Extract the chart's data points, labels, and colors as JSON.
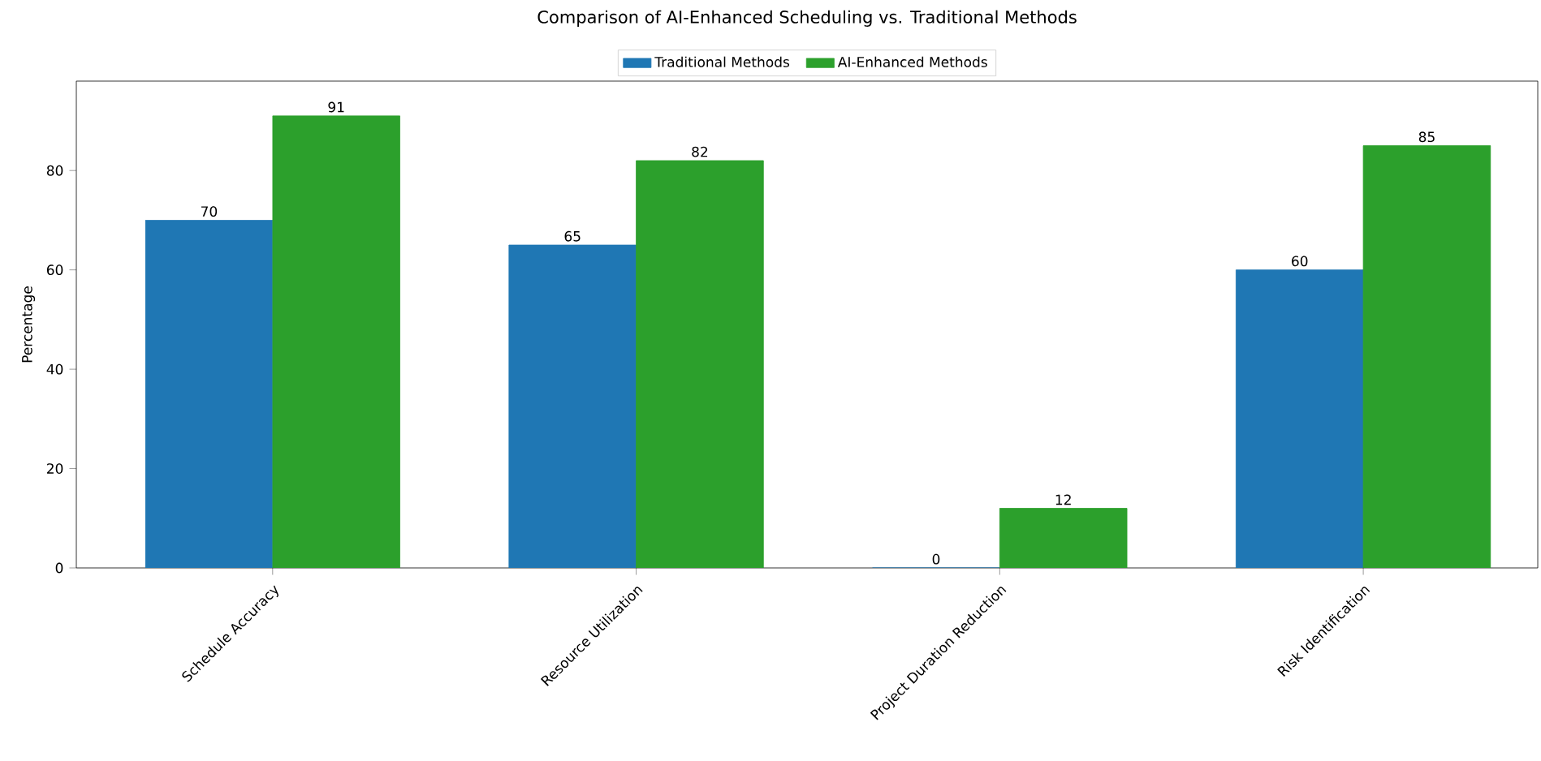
{
  "chart_data": {
    "type": "bar",
    "title": "Comparison of AI-Enhanced Scheduling vs. Traditional Methods",
    "ylabel": "Percentage",
    "categories": [
      "Schedule Accuracy",
      "Resource Utilization",
      "Project Duration Reduction",
      "Risk Identification"
    ],
    "series": [
      {
        "name": "Traditional Methods",
        "color": "#1f77b4",
        "values": [
          70,
          65,
          0,
          60
        ]
      },
      {
        "name": "AI-Enhanced Methods",
        "color": "#2ca02c",
        "values": [
          91,
          82,
          12,
          85
        ]
      }
    ],
    "ylim": [
      0,
      98
    ],
    "yticks": [
      0,
      20,
      40,
      60,
      80
    ],
    "data_labels": true,
    "legend": "top",
    "grid": false
  }
}
